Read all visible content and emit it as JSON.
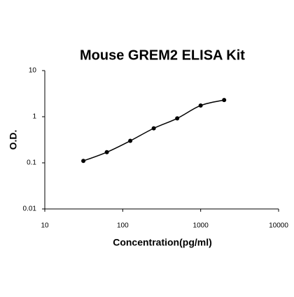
{
  "chart_data": {
    "type": "scatter",
    "title": "Mouse GREM2 ELISA Kit",
    "x_label": "Concentration(pg/ml)",
    "y_label": "O.D.",
    "x": [
      31.25,
      62.5,
      125,
      250,
      500,
      1000,
      2000
    ],
    "values": [
      0.11,
      0.17,
      0.3,
      0.56,
      0.92,
      1.75,
      2.3
    ],
    "color": "#000000",
    "line": true,
    "xlog": true,
    "ylog": true,
    "xlim": [
      10,
      10000
    ],
    "ylim": [
      0.01,
      10
    ],
    "xticks": [
      10,
      100,
      1000,
      10000
    ],
    "yticks": [
      0.01,
      0.1,
      1,
      10
    ]
  }
}
